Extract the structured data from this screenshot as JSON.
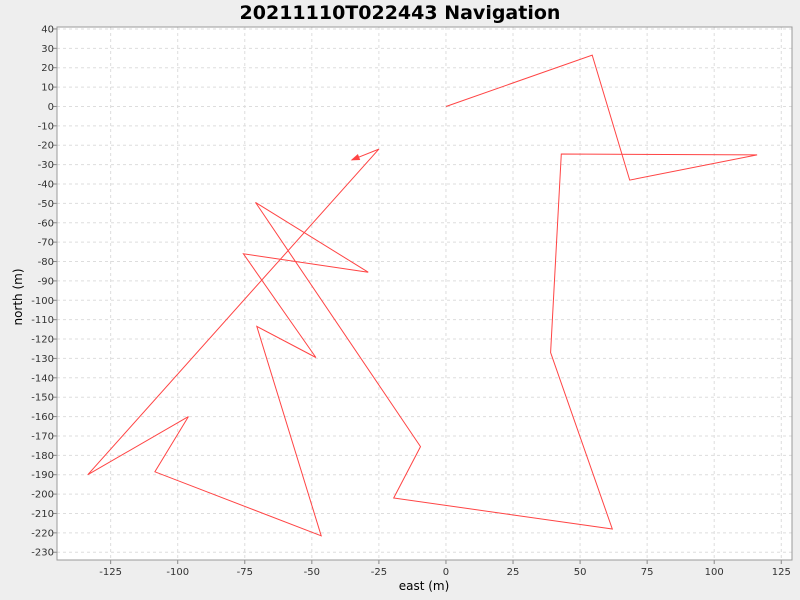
{
  "chart_data": {
    "type": "line",
    "title": "20211110T022443 Navigation",
    "xlabel": "east (m)",
    "ylabel": "north (m)",
    "xlim": [
      -145,
      129
    ],
    "ylim": [
      -234,
      41
    ],
    "x_ticks": [
      -125,
      -100,
      -75,
      -50,
      -25,
      0,
      25,
      50,
      75,
      100,
      125
    ],
    "y_ticks": [
      40,
      30,
      20,
      10,
      0,
      -10,
      -20,
      -30,
      -40,
      -50,
      -60,
      -70,
      -80,
      -90,
      -100,
      -110,
      -120,
      -130,
      -140,
      -150,
      -160,
      -170,
      -180,
      -190,
      -200,
      -210,
      -220,
      -230
    ],
    "grid": true,
    "series": [
      {
        "color": "#ff4444",
        "end_arrow": true,
        "points": [
          [
            0,
            0
          ],
          [
            54.5,
            26.5
          ],
          [
            68.5,
            -38
          ],
          [
            116,
            -25
          ],
          [
            43,
            -24.5
          ],
          [
            39,
            -127
          ],
          [
            62,
            -218
          ],
          [
            -19.5,
            -202
          ],
          [
            -9.5,
            -175.5
          ],
          [
            -71,
            -49.5
          ],
          [
            -29,
            -85.5
          ],
          [
            -75.5,
            -76
          ],
          [
            -48.5,
            -129.5
          ],
          [
            -70.5,
            -113.5
          ],
          [
            -46.5,
            -221.5
          ],
          [
            -108.5,
            -188.5
          ],
          [
            -96,
            -160
          ],
          [
            -133.5,
            -190
          ],
          [
            -25,
            -22
          ],
          [
            -35,
            -27.5
          ]
        ]
      }
    ]
  }
}
